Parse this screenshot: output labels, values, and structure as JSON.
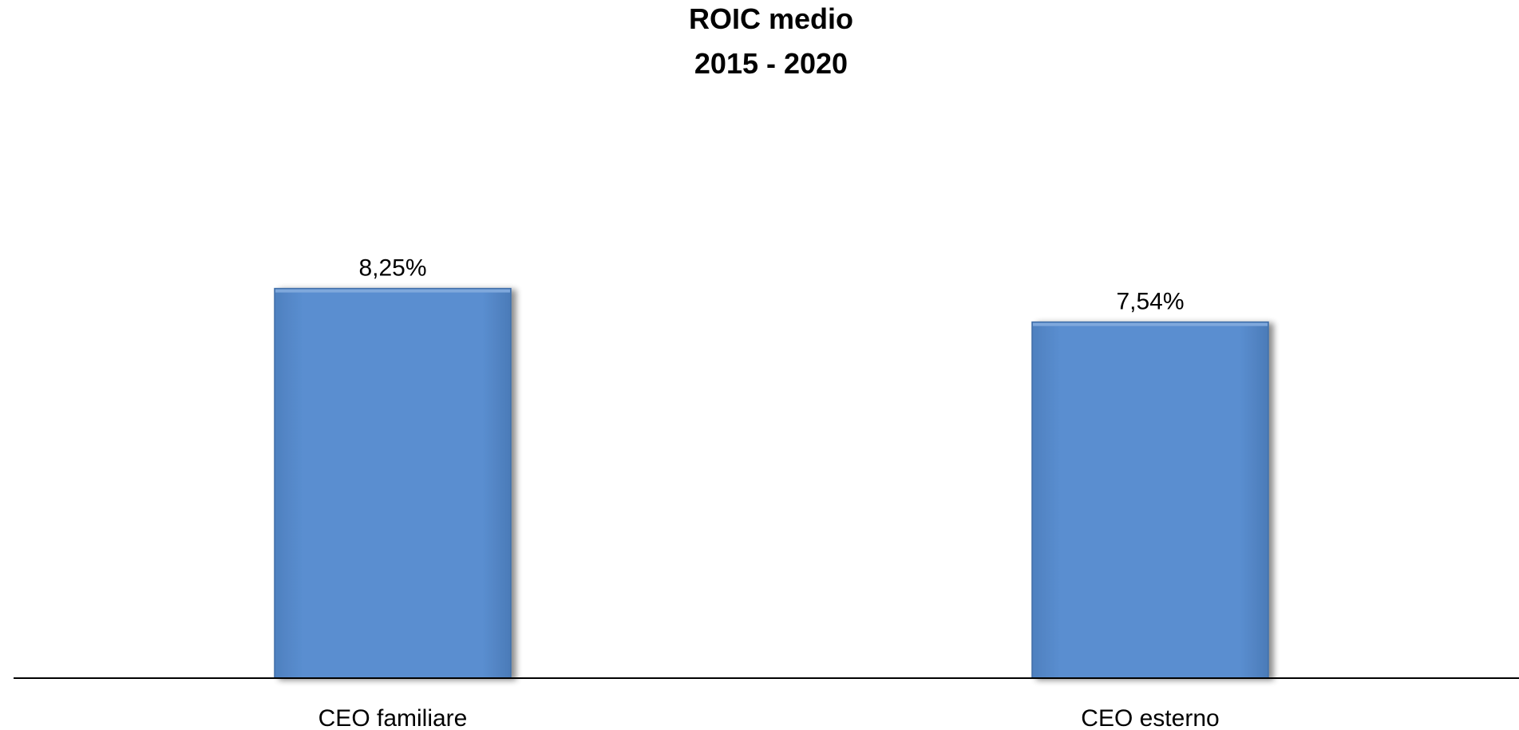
{
  "chart_data": {
    "type": "bar",
    "title": "ROIC medio",
    "subtitle": "2015 - 2020",
    "categories": [
      "CEO familiare",
      "CEO esterno"
    ],
    "values": [
      8.25,
      7.54
    ],
    "value_labels": [
      "8,25%",
      "7,54%"
    ],
    "ylim": [
      0,
      9
    ],
    "grid": false,
    "legend": "none",
    "bar_color": "#5589CA",
    "bar_edge_color": "#3F6EA8",
    "axis_color": "#000000"
  }
}
